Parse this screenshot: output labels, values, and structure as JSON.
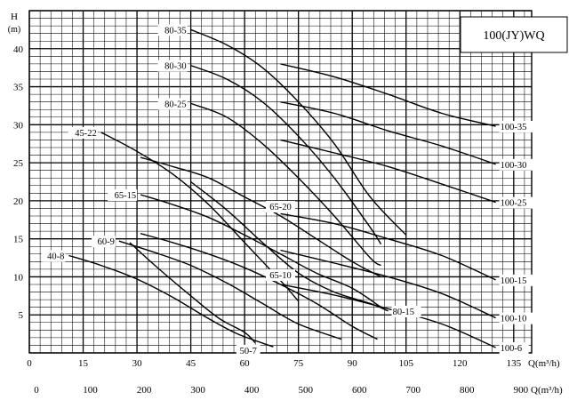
{
  "chart_data": {
    "type": "line",
    "title": "100(JY)WQ",
    "ylabel": "H",
    "yunit": "(m)",
    "xlabel_top": "Q(m³/h)",
    "xlabel_bottom": "Q(m³/h)",
    "xlim_top": [
      0,
      140
    ],
    "xlim_bottom": [
      0,
      933.3
    ],
    "ylim": [
      0,
      45
    ],
    "grid": true,
    "x_ticks_top": [
      "0",
      "15",
      "30",
      "45",
      "60",
      "75",
      "90",
      "105",
      "120",
      "135"
    ],
    "x_ticks_bottom": [
      "0",
      "100",
      "200",
      "300",
      "400",
      "500",
      "600",
      "700",
      "800",
      "900"
    ],
    "y_ticks": [
      "5",
      "10",
      "15",
      "20",
      "25",
      "30",
      "35",
      "40"
    ],
    "series": [
      {
        "name": "80-35",
        "label_pos": "left",
        "points": [
          [
            45,
            42.5
          ],
          [
            55,
            40.5
          ],
          [
            65,
            37.5
          ],
          [
            75,
            33
          ],
          [
            85,
            27.5
          ],
          [
            95,
            20.5
          ],
          [
            105,
            15.5
          ]
        ]
      },
      {
        "name": "80-30",
        "label_pos": "left",
        "points": [
          [
            45,
            37.8
          ],
          [
            55,
            36
          ],
          [
            65,
            33
          ],
          [
            75,
            28.5
          ],
          [
            85,
            23
          ],
          [
            95,
            16.5
          ],
          [
            98,
            14.3
          ]
        ]
      },
      {
        "name": "80-25",
        "label_pos": "left",
        "points": [
          [
            45,
            32.8
          ],
          [
            55,
            31
          ],
          [
            65,
            27.5
          ],
          [
            75,
            23
          ],
          [
            85,
            18
          ],
          [
            95,
            12.5
          ],
          [
            98,
            11.5
          ]
        ]
      },
      {
        "name": "100-35",
        "label_pos": "right",
        "points": [
          [
            70,
            38
          ],
          [
            85,
            36.3
          ],
          [
            100,
            34
          ],
          [
            115,
            31.5
          ],
          [
            130,
            29.8
          ]
        ]
      },
      {
        "name": "100-30",
        "label_pos": "right",
        "points": [
          [
            70,
            33
          ],
          [
            85,
            31.5
          ],
          [
            100,
            29.2
          ],
          [
            115,
            27.2
          ],
          [
            130,
            24.8
          ]
        ]
      },
      {
        "name": "100-25",
        "label_pos": "right",
        "points": [
          [
            70,
            28
          ],
          [
            85,
            26.3
          ],
          [
            100,
            24.5
          ],
          [
            115,
            22.2
          ],
          [
            130,
            19.8
          ]
        ]
      },
      {
        "name": "100-15",
        "label_pos": "right",
        "points": [
          [
            70,
            18.3
          ],
          [
            85,
            17
          ],
          [
            100,
            15
          ],
          [
            115,
            12.8
          ],
          [
            130,
            9.6
          ]
        ]
      },
      {
        "name": "100-10",
        "label_pos": "right",
        "points": [
          [
            70,
            13.5
          ],
          [
            85,
            11.8
          ],
          [
            100,
            10
          ],
          [
            115,
            7.8
          ],
          [
            130,
            4.6
          ]
        ]
      },
      {
        "name": "100-6",
        "label_pos": "right",
        "points": [
          [
            70,
            9
          ],
          [
            85,
            7.6
          ],
          [
            100,
            5.8
          ],
          [
            115,
            3.8
          ],
          [
            130,
            0.7
          ]
        ]
      },
      {
        "name": "45-22",
        "label_pos": "left",
        "points": [
          [
            20,
            29
          ],
          [
            30,
            26.5
          ],
          [
            40,
            23.5
          ],
          [
            50,
            19.5
          ],
          [
            60,
            14.5
          ],
          [
            70,
            9.5
          ],
          [
            75,
            6.8
          ]
        ]
      },
      {
        "name": "65-20",
        "label_pos": "above",
        "points": [
          [
            31,
            25.7
          ],
          [
            40,
            24.5
          ],
          [
            50,
            23
          ],
          [
            60,
            20.5
          ],
          [
            70,
            18
          ],
          [
            80,
            15
          ],
          [
            90,
            12
          ],
          [
            98,
            10
          ]
        ]
      },
      {
        "name": "65-15",
        "label_pos": "left",
        "points": [
          [
            31,
            20.8
          ],
          [
            40,
            19.5
          ],
          [
            50,
            17.8
          ],
          [
            60,
            15.5
          ],
          [
            70,
            13
          ],
          [
            80,
            10.5
          ],
          [
            90,
            8.5
          ],
          [
            98,
            6
          ]
        ]
      },
      {
        "name": "65-10",
        "label_pos": "above",
        "points": [
          [
            31,
            15.7
          ],
          [
            40,
            14.5
          ],
          [
            50,
            13
          ],
          [
            60,
            11.2
          ],
          [
            70,
            9
          ],
          [
            80,
            6.5
          ],
          [
            90,
            3.5
          ],
          [
            97,
            1.8
          ]
        ]
      },
      {
        "name": "60-9",
        "label_pos": "left",
        "points": [
          [
            25,
            14.7
          ],
          [
            35,
            13.2
          ],
          [
            45,
            11.5
          ],
          [
            55,
            9.2
          ],
          [
            65,
            6.5
          ],
          [
            75,
            3.8
          ],
          [
            87,
            1.8
          ]
        ]
      },
      {
        "name": "40-8",
        "label_pos": "left",
        "points": [
          [
            11,
            12.8
          ],
          [
            20,
            11.5
          ],
          [
            30,
            9.7
          ],
          [
            40,
            7.3
          ],
          [
            50,
            4.5
          ],
          [
            58,
            2.5
          ],
          [
            68,
            0.8
          ]
        ]
      },
      {
        "name": "50-7",
        "label_pos": "below",
        "points": [
          [
            28,
            14.5
          ],
          [
            35,
            11.5
          ],
          [
            45,
            7.5
          ],
          [
            53,
            4.5
          ],
          [
            60,
            2.7
          ],
          [
            63,
            1.3
          ]
        ]
      },
      {
        "name": "80-15",
        "label_pos": "right",
        "points": [
          [
            45,
            22.5
          ],
          [
            55,
            18.8
          ],
          [
            65,
            14.5
          ],
          [
            75,
            10.5
          ],
          [
            85,
            8
          ],
          [
            95,
            6.5
          ],
          [
            100,
            5.5
          ]
        ]
      }
    ]
  }
}
